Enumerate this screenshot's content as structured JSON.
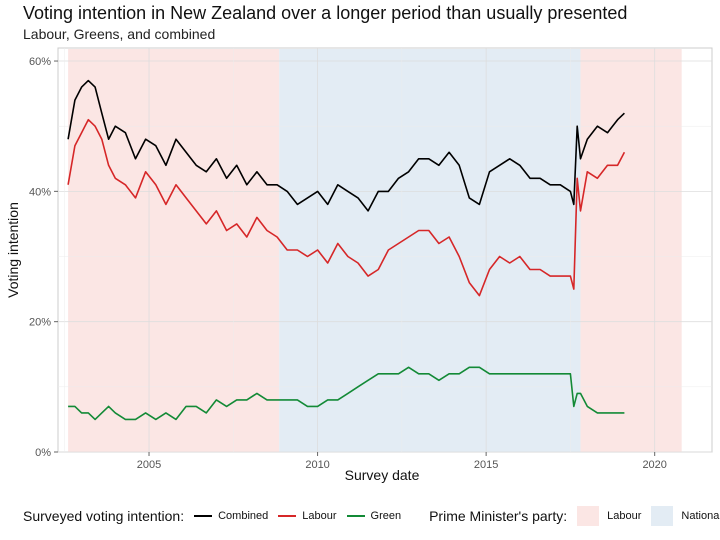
{
  "title": "Voting intention in New Zealand over a longer period than usually presented",
  "subtitle": "Labour, Greens, and combined",
  "chart_data": {
    "type": "line",
    "xlabel": "Survey date",
    "ylabel": "Voting intention",
    "xlim": [
      2002.3,
      2021.7
    ],
    "ylim": [
      0,
      0.62
    ],
    "x_ticks": [
      2005,
      2010,
      2015,
      2020
    ],
    "x_tick_labels": [
      "2005",
      "2010",
      "2015",
      "2020"
    ],
    "y_ticks": [
      0,
      0.2,
      0.4,
      0.6
    ],
    "y_tick_labels": [
      "0%",
      "20%",
      "40%",
      "60%"
    ],
    "grid": true,
    "legend_position": "bottom",
    "series_legend_title": "Surveyed voting intention:",
    "series": [
      {
        "name": "Combined",
        "color": "#000000",
        "x": [
          2002.6,
          2002.8,
          2003.0,
          2003.2,
          2003.4,
          2003.6,
          2003.8,
          2004.0,
          2004.3,
          2004.6,
          2004.9,
          2005.2,
          2005.5,
          2005.8,
          2006.1,
          2006.4,
          2006.7,
          2007.0,
          2007.3,
          2007.6,
          2007.9,
          2008.2,
          2008.5,
          2008.8,
          2009.1,
          2009.4,
          2009.7,
          2010.0,
          2010.3,
          2010.6,
          2010.9,
          2011.2,
          2011.5,
          2011.8,
          2012.1,
          2012.4,
          2012.7,
          2013.0,
          2013.3,
          2013.6,
          2013.9,
          2014.2,
          2014.5,
          2014.8,
          2015.1,
          2015.4,
          2015.7,
          2016.0,
          2016.3,
          2016.6,
          2016.9,
          2017.2,
          2017.5,
          2017.6,
          2017.7,
          2017.8,
          2018.0,
          2018.3,
          2018.6,
          2018.9,
          2019.1
        ],
        "y": [
          0.48,
          0.54,
          0.56,
          0.57,
          0.56,
          0.52,
          0.48,
          0.5,
          0.49,
          0.45,
          0.48,
          0.47,
          0.44,
          0.48,
          0.46,
          0.44,
          0.43,
          0.45,
          0.42,
          0.44,
          0.41,
          0.43,
          0.41,
          0.41,
          0.4,
          0.38,
          0.39,
          0.4,
          0.38,
          0.41,
          0.4,
          0.39,
          0.37,
          0.4,
          0.4,
          0.42,
          0.43,
          0.45,
          0.45,
          0.44,
          0.46,
          0.44,
          0.39,
          0.38,
          0.43,
          0.44,
          0.45,
          0.44,
          0.42,
          0.42,
          0.41,
          0.41,
          0.4,
          0.38,
          0.5,
          0.45,
          0.48,
          0.5,
          0.49,
          0.51,
          0.52
        ]
      },
      {
        "name": "Labour",
        "color": "#d62728",
        "x": [
          2002.6,
          2002.8,
          2003.0,
          2003.2,
          2003.4,
          2003.6,
          2003.8,
          2004.0,
          2004.3,
          2004.6,
          2004.9,
          2005.2,
          2005.5,
          2005.8,
          2006.1,
          2006.4,
          2006.7,
          2007.0,
          2007.3,
          2007.6,
          2007.9,
          2008.2,
          2008.5,
          2008.8,
          2009.1,
          2009.4,
          2009.7,
          2010.0,
          2010.3,
          2010.6,
          2010.9,
          2011.2,
          2011.5,
          2011.8,
          2012.1,
          2012.4,
          2012.7,
          2013.0,
          2013.3,
          2013.6,
          2013.9,
          2014.2,
          2014.5,
          2014.8,
          2015.1,
          2015.4,
          2015.7,
          2016.0,
          2016.3,
          2016.6,
          2016.9,
          2017.2,
          2017.5,
          2017.6,
          2017.7,
          2017.8,
          2018.0,
          2018.3,
          2018.6,
          2018.9,
          2019.1
        ],
        "y": [
          0.41,
          0.47,
          0.49,
          0.51,
          0.5,
          0.48,
          0.44,
          0.42,
          0.41,
          0.39,
          0.43,
          0.41,
          0.38,
          0.41,
          0.39,
          0.37,
          0.35,
          0.37,
          0.34,
          0.35,
          0.33,
          0.36,
          0.34,
          0.33,
          0.31,
          0.31,
          0.3,
          0.31,
          0.29,
          0.32,
          0.3,
          0.29,
          0.27,
          0.28,
          0.31,
          0.32,
          0.33,
          0.34,
          0.34,
          0.32,
          0.33,
          0.3,
          0.26,
          0.24,
          0.28,
          0.3,
          0.29,
          0.3,
          0.28,
          0.28,
          0.27,
          0.27,
          0.27,
          0.25,
          0.42,
          0.37,
          0.43,
          0.42,
          0.44,
          0.44,
          0.46
        ]
      },
      {
        "name": "Green",
        "color": "#138a36",
        "x": [
          2002.6,
          2002.8,
          2003.0,
          2003.2,
          2003.4,
          2003.6,
          2003.8,
          2004.0,
          2004.3,
          2004.6,
          2004.9,
          2005.2,
          2005.5,
          2005.8,
          2006.1,
          2006.4,
          2006.7,
          2007.0,
          2007.3,
          2007.6,
          2007.9,
          2008.2,
          2008.5,
          2008.8,
          2009.1,
          2009.4,
          2009.7,
          2010.0,
          2010.3,
          2010.6,
          2010.9,
          2011.2,
          2011.5,
          2011.8,
          2012.1,
          2012.4,
          2012.7,
          2013.0,
          2013.3,
          2013.6,
          2013.9,
          2014.2,
          2014.5,
          2014.8,
          2015.1,
          2015.4,
          2015.7,
          2016.0,
          2016.3,
          2016.6,
          2016.9,
          2017.2,
          2017.5,
          2017.6,
          2017.7,
          2017.8,
          2018.0,
          2018.3,
          2018.6,
          2018.9,
          2019.1
        ],
        "y": [
          0.07,
          0.07,
          0.06,
          0.06,
          0.05,
          0.06,
          0.07,
          0.06,
          0.05,
          0.05,
          0.06,
          0.05,
          0.06,
          0.05,
          0.07,
          0.07,
          0.06,
          0.08,
          0.07,
          0.08,
          0.08,
          0.09,
          0.08,
          0.08,
          0.08,
          0.08,
          0.07,
          0.07,
          0.08,
          0.08,
          0.09,
          0.1,
          0.11,
          0.12,
          0.12,
          0.12,
          0.13,
          0.12,
          0.12,
          0.11,
          0.12,
          0.12,
          0.13,
          0.13,
          0.12,
          0.12,
          0.12,
          0.12,
          0.12,
          0.12,
          0.12,
          0.12,
          0.12,
          0.07,
          0.09,
          0.09,
          0.07,
          0.06,
          0.06,
          0.06,
          0.06
        ]
      }
    ],
    "pm_legend_title": "Prime Minister's party:",
    "pm_periods": [
      {
        "name": "Labour",
        "start": 2002.6,
        "end": 2008.86,
        "color": "#fbe6e4"
      },
      {
        "name": "National",
        "start": 2008.86,
        "end": 2017.8,
        "color": "#e3ecf4"
      },
      {
        "name": "Labour",
        "start": 2017.8,
        "end": 2020.8,
        "color": "#fbe6e4"
      }
    ],
    "pm_legend": [
      {
        "name": "Labour",
        "color": "#fbe6e4"
      },
      {
        "name": "National",
        "color": "#e3ecf4"
      }
    ]
  }
}
